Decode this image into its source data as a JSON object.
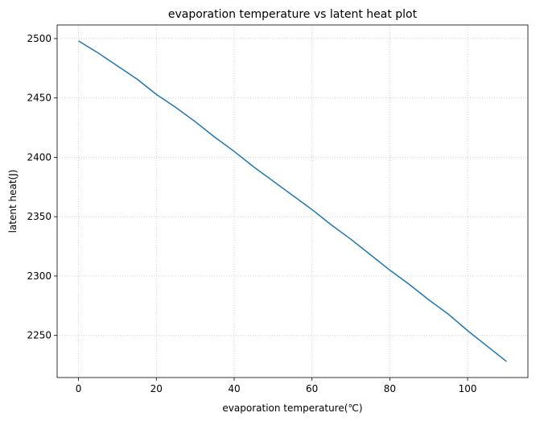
{
  "chart_data": {
    "type": "line",
    "title": "evaporation temperature vs latent heat plot",
    "xlabel": "evaporation temperature(℃)",
    "ylabel": "latent heat(J)",
    "xlim": [
      -5.5,
      115.5
    ],
    "ylim": [
      2214.5,
      2511.5
    ],
    "xticks": [
      0,
      20,
      40,
      60,
      80,
      100
    ],
    "yticks": [
      2250,
      2300,
      2350,
      2400,
      2450,
      2500
    ],
    "grid": true,
    "series": [
      {
        "color": "#1f77b4",
        "x": [
          0,
          5,
          10,
          15,
          20,
          25,
          30,
          35,
          40,
          45,
          50,
          55,
          60,
          65,
          70,
          75,
          80,
          85,
          90,
          95,
          100,
          105,
          110
        ],
        "y": [
          2498,
          2488,
          2477,
          2466,
          2453,
          2442,
          2430,
          2417,
          2405,
          2392,
          2380,
          2368,
          2356,
          2343,
          2331,
          2318,
          2305,
          2293,
          2280,
          2268,
          2254,
          2241,
          2228
        ]
      }
    ]
  }
}
